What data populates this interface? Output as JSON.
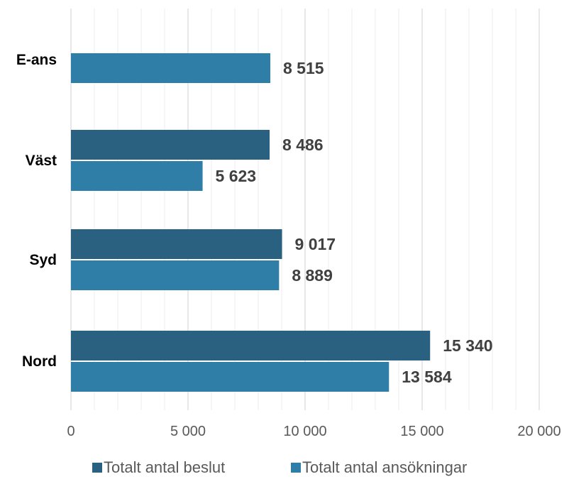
{
  "chart_data": {
    "type": "bar",
    "orientation": "horizontal",
    "categories": [
      "E-ans",
      "Väst",
      "Syd",
      "Nord"
    ],
    "series": [
      {
        "name": "Totalt antal beslut",
        "color": "#2a6080",
        "values": [
          null,
          8486,
          9017,
          15340
        ],
        "labels": [
          "",
          "8 486",
          "9 017",
          "15 340"
        ]
      },
      {
        "name": "Totalt antal ansökningar",
        "color": "#2e7ea8",
        "values": [
          8515,
          5623,
          8889,
          13584
        ],
        "labels": [
          "8 515",
          "5 623",
          "8 889",
          "13 584"
        ]
      }
    ],
    "xlim": [
      0,
      20000
    ],
    "xticks": [
      0,
      5000,
      10000,
      15000,
      20000
    ],
    "xtick_labels": [
      "0",
      "5 000",
      "10 000",
      "15 000",
      "20 000"
    ],
    "grid": true,
    "legend_position": "bottom"
  }
}
